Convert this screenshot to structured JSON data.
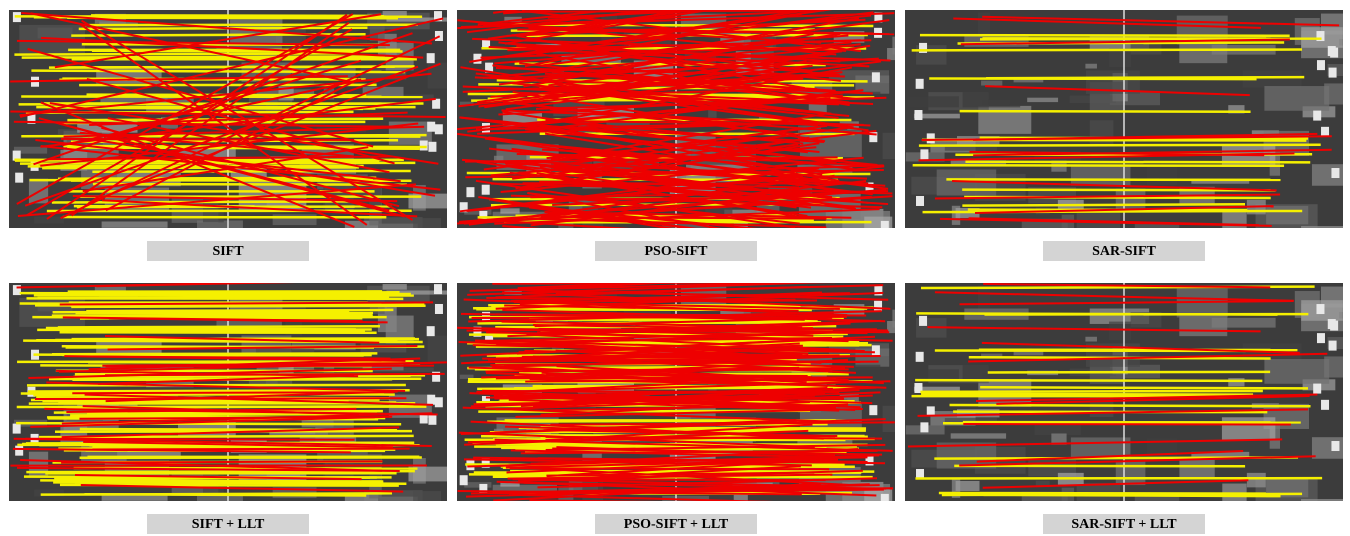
{
  "panels": [
    {
      "label": "SIFT"
    },
    {
      "label": "PSO-SIFT"
    },
    {
      "label": "SAR-SIFT"
    },
    {
      "label": "SIFT + LLT"
    },
    {
      "label": "PSO-SIFT + LLT"
    },
    {
      "label": "SAR-SIFT + LLT"
    }
  ]
}
